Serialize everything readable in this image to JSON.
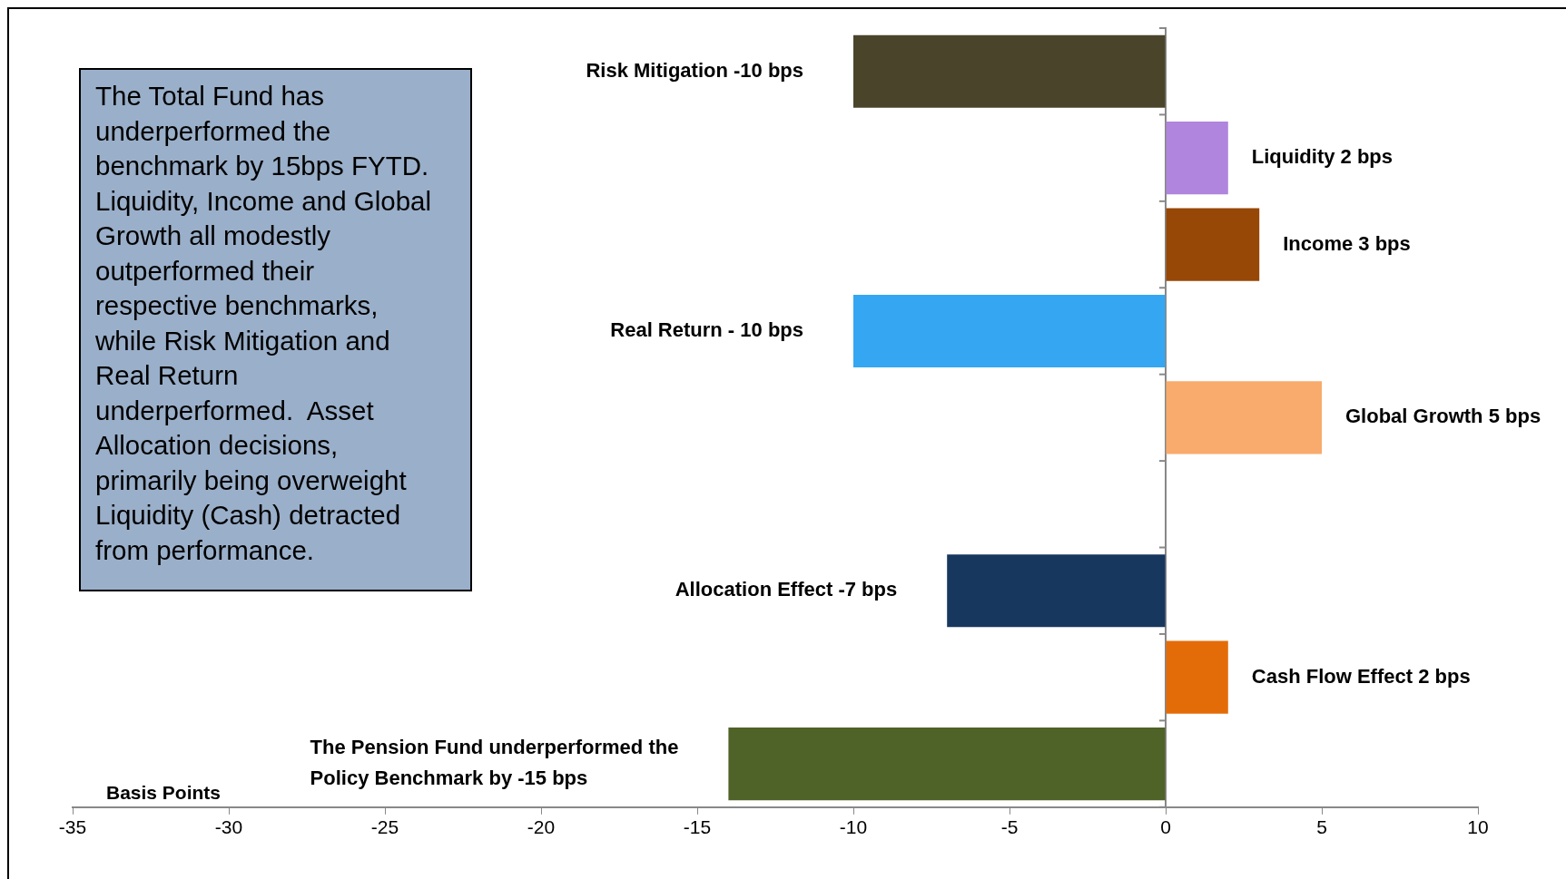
{
  "chart_data": {
    "type": "bar",
    "orientation": "horizontal",
    "xlabel": "Basis Points",
    "categories": [
      "Risk Mitigation -10 bps",
      "Liquidity 2 bps",
      "Income 3 bps",
      "Real Return - 10 bps",
      "Global Growth 5 bps",
      null,
      "Allocation Effect -7 bps",
      "Cash Flow Effect 2 bps",
      "The Pension Fund underperformed the Policy Benchmark by -15 bps"
    ],
    "values": [
      -10,
      2,
      3,
      -10,
      5,
      null,
      -7,
      2,
      -14
    ],
    "colors": [
      "#4a442a",
      "#b085dd",
      "#974706",
      "#35a7f2",
      "#f8ab6c",
      "#000000",
      "#17375e",
      "#e36c09",
      "#4f6228"
    ],
    "xlim": [
      -35,
      10
    ],
    "xticks": [
      -35,
      -30,
      -25,
      -20,
      -15,
      -10,
      -5,
      0,
      5,
      10
    ],
    "legend": false,
    "tick_labels": "x",
    "annotations": [
      "The Total Fund has underperformed the benchmark by 15bps FYTD.  Liquidity, Income and Global Growth all modestly outperformed their respective benchmarks, while Risk Mitigation and Real Return underperformed.  Asset Allocation decisions, primarily being overweight Liquidity (Cash) detracted from performance."
    ]
  }
}
